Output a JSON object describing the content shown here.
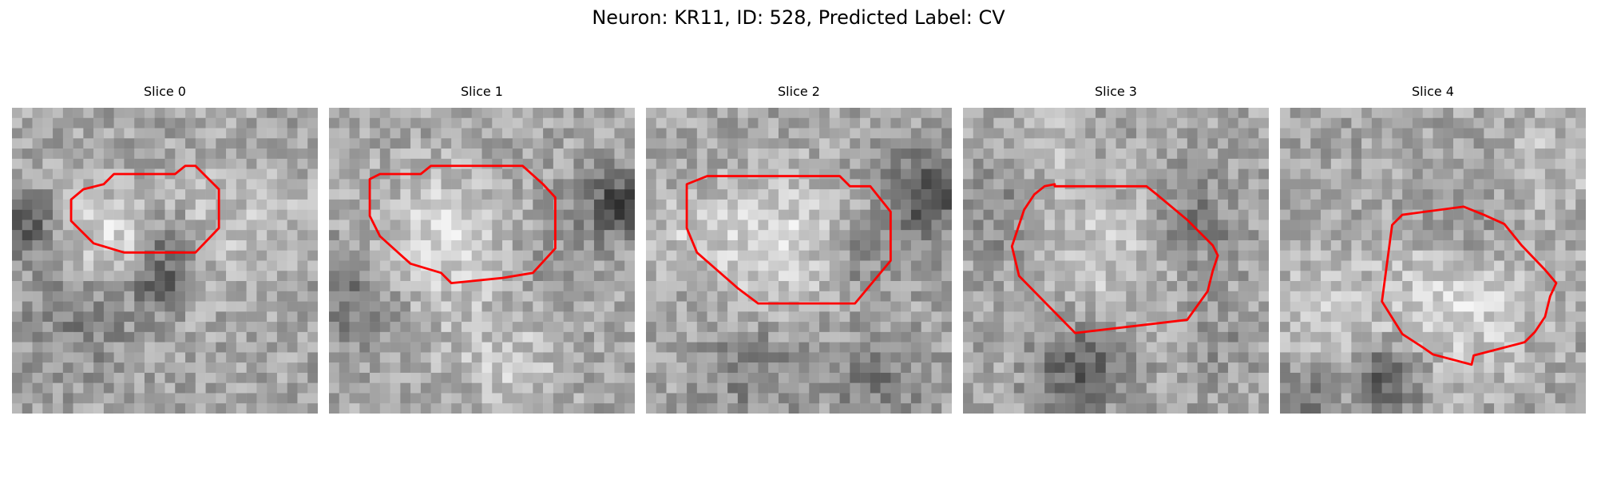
{
  "figure": {
    "title": "Neuron: KR11, ID: 528, Predicted Label: CV"
  },
  "style": {
    "contour_color": "#ff0000",
    "background": "#ffffff",
    "colormap": "grayscale"
  },
  "panels": [
    {
      "title": "Slice 0"
    },
    {
      "title": "Slice 1"
    },
    {
      "title": "Slice 2"
    },
    {
      "title": "Slice 3"
    },
    {
      "title": "Slice 4"
    }
  ]
}
